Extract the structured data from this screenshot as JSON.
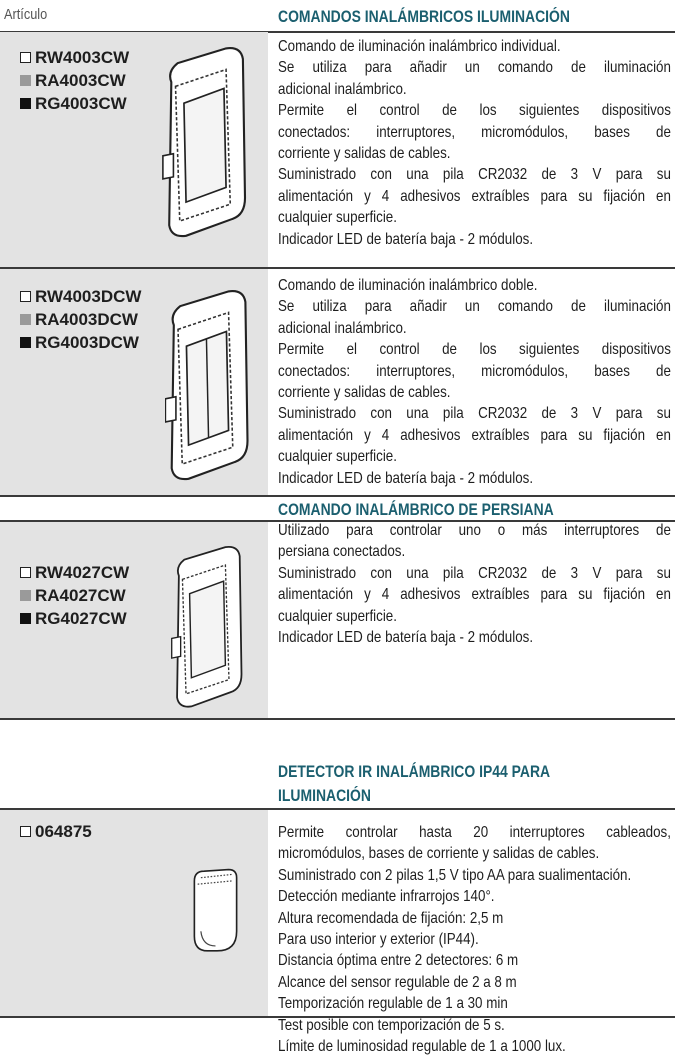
{
  "header": {
    "column_label": "Artículo"
  },
  "sections": [
    {
      "title": [
        "COMANDOS INALÁMBRICOS ILUMINACIÓN"
      ],
      "items": [
        {
          "codes": [
            "RW4003CW",
            "RA4003CW",
            "RG4003CW"
          ],
          "paragraphs": [
            [
              "Comando de iluminación inalámbrico individual."
            ],
            [
              "Se utiliza para añadir un comando de iluminación",
              "adicional inalámbrico."
            ],
            [
              "Permite el control de los siguientes dispositivos",
              "conectados: interruptores, micromódulos, bases de",
              "corriente y salidas de cables."
            ],
            [
              "Suministrado con una pila CR2032 de 3 V para su",
              "alimentación y 4 adhesivos extraíbles para su fijación en",
              "cualquier superficie."
            ],
            [
              "Indicador LED de batería baja - 2 módulos."
            ]
          ]
        },
        {
          "codes": [
            "RW4003DCW",
            "RA4003DCW",
            "RG4003DCW"
          ],
          "paragraphs": [
            [
              "Comando de iluminación inalámbrico doble."
            ],
            [
              "Se utiliza para añadir un comando de iluminación",
              "adicional inalámbrico."
            ],
            [
              "Permite el control de los siguientes dispositivos",
              "conectados: interruptores, micromódulos, bases de",
              "corriente y salidas de cables."
            ],
            [
              "Suministrado con una pila CR2032 de 3 V para su",
              "alimentación y 4 adhesivos extraíbles para su fijación en",
              "cualquier superficie."
            ],
            [
              "Indicador LED de batería baja - 2 módulos."
            ]
          ]
        }
      ]
    },
    {
      "title": [
        "COMANDO INALÁMBRICO DE PERSIANA"
      ],
      "items": [
        {
          "codes": [
            "RW4027CW",
            "RA4027CW",
            "RG4027CW"
          ],
          "paragraphs": [
            [
              "Utilizado para controlar uno o más interruptores de",
              "persiana conectados."
            ],
            [
              "Suministrado con una pila CR2032 de 3 V para su",
              "alimentación y 4 adhesivos extraíbles para su fijación en",
              "cualquier superficie."
            ],
            [
              "Indicador LED de batería baja - 2 módulos."
            ]
          ]
        }
      ]
    },
    {
      "title": [
        "DETECTOR IR INALÁMBRICO IP44 PARA",
        "ILUMINACIÓN"
      ],
      "items": [
        {
          "codes": [
            "064875"
          ],
          "paragraphs": [
            [
              "Permite controlar hasta 20 interruptores cableados,",
              "micromódulos, bases de corriente y salidas de cables."
            ],
            [
              "Suministrado con 2 pilas 1,5 V tipo AA para sualimentación."
            ],
            [
              "Detección mediante infrarrojos 140°."
            ],
            [
              "Altura recomendada de fijación: 2,5 m"
            ],
            [
              "Para uso interior y exterior (IP44)."
            ],
            [
              "Distancia óptima entre 2 detectores: 6 m"
            ],
            [
              "Alcance del sensor regulable de 2 a 8 m"
            ],
            [
              "Temporización regulable de 1 a 30 min"
            ],
            [
              "Test posible con temporización de 5 s."
            ],
            [
              "Límite de luminosidad regulable de 1 a 1000 lux."
            ]
          ]
        }
      ]
    }
  ]
}
